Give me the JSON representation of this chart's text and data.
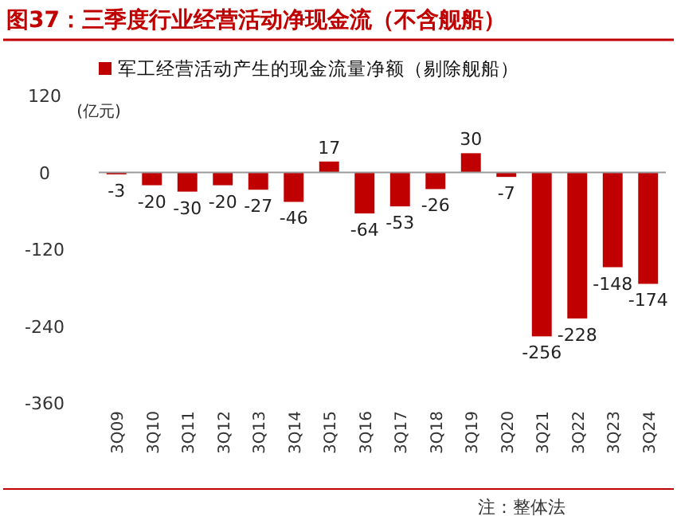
{
  "chart_data": {
    "type": "bar",
    "title": "图37：三季度行业经营活动净现金流（不含舰船）",
    "ylabel": "(亿元)",
    "categories": [
      "3Q09",
      "3Q10",
      "3Q11",
      "3Q12",
      "3Q13",
      "3Q14",
      "3Q15",
      "3Q16",
      "3Q17",
      "3Q18",
      "3Q19",
      "3Q20",
      "3Q21",
      "3Q22",
      "3Q23",
      "3Q24"
    ],
    "series": [
      {
        "name": "军工经营活动产生的现金流量净额（剔除舰船）",
        "color": "#c00000",
        "values": [
          -3,
          -20,
          -30,
          -20,
          -27,
          -46,
          17,
          -64,
          -53,
          -26,
          30,
          -7,
          -256,
          -228,
          -148,
          -174
        ]
      }
    ],
    "ylim": [
      -360,
      120
    ],
    "yticks": [
      120,
      0,
      -120,
      -240,
      -360
    ],
    "data_labels": true,
    "legend": "top",
    "annotations": [
      "注：整体法"
    ]
  }
}
